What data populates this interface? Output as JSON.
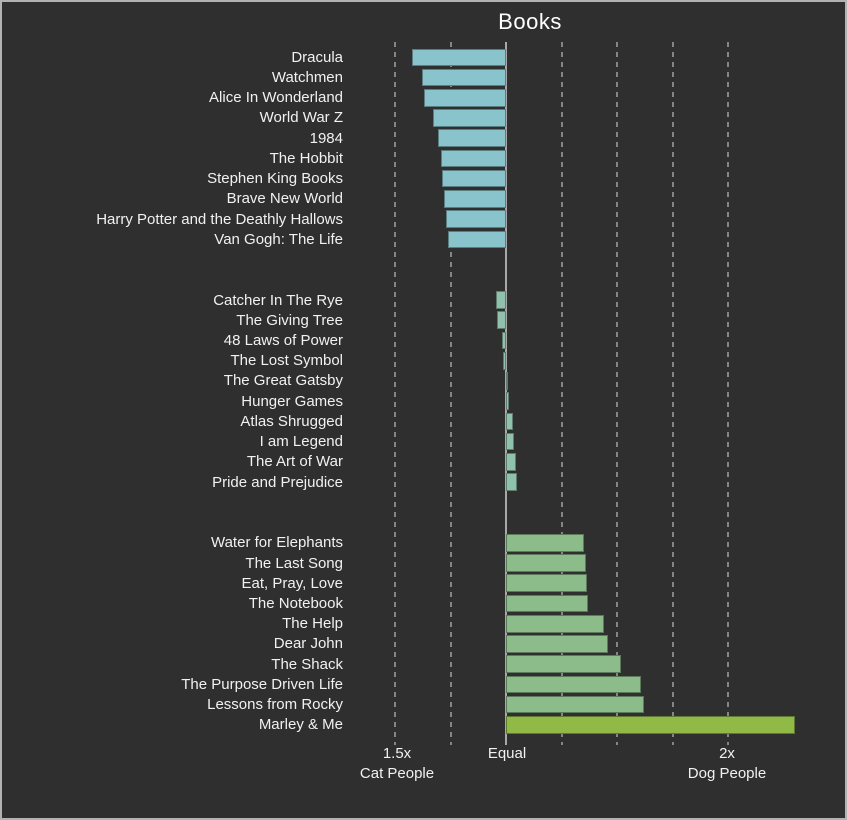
{
  "chart_data": {
    "type": "bar",
    "orientation": "horizontal_diverging",
    "title": "Books",
    "axis": {
      "left": {
        "line1": "1.5x",
        "line2": "Cat People"
      },
      "center": {
        "line1": "Equal"
      },
      "right": {
        "line1": "2x",
        "line2": "Dog People"
      }
    },
    "axis_note": "bar lengths are preference multiples; cat-side bars extend left of Equal, dog-side bars extend right",
    "gridline_units": [
      -0.5,
      -0.25,
      0.25,
      0.5,
      0.75,
      1.0
    ],
    "colors": {
      "background": "#2f2f2f",
      "frame_border": "#b2b2b2",
      "text": "#f1f1f1",
      "grid_dashed": "#858585",
      "grid_center": "#a8a8a8",
      "cat_bars": "#89c3cc",
      "neutral_bars": "#90c1ad",
      "dog_bars": "#8dbc8b",
      "highlight_bar": "#90ba45"
    },
    "groups": [
      {
        "name": "cat-favored",
        "color": "#89c3cc",
        "items": [
          {
            "label": "Dracula",
            "side": "cat",
            "value": 1.425
          },
          {
            "label": "Watchmen",
            "side": "cat",
            "value": 1.38
          },
          {
            "label": "Alice In Wonderland",
            "side": "cat",
            "value": 1.37
          },
          {
            "label": "World War Z",
            "side": "cat",
            "value": 1.33
          },
          {
            "label": "1984",
            "side": "cat",
            "value": 1.305
          },
          {
            "label": "The Hobbit",
            "side": "cat",
            "value": 1.295
          },
          {
            "label": "Stephen King Books",
            "side": "cat",
            "value": 1.29
          },
          {
            "label": "Brave New World",
            "side": "cat",
            "value": 1.28
          },
          {
            "label": "Harry Potter and the Deathly Hallows",
            "side": "cat",
            "value": 1.27
          },
          {
            "label": "Van Gogh: The Life",
            "side": "cat",
            "value": 1.26
          }
        ]
      },
      {
        "name": "near-equal",
        "color": "#90c1ad",
        "items": [
          {
            "label": "Catcher In The Rye",
            "side": "cat",
            "value": 1.046
          },
          {
            "label": "The Giving Tree",
            "side": "cat",
            "value": 1.04
          },
          {
            "label": "48 Laws of Power",
            "side": "cat",
            "value": 1.02
          },
          {
            "label": "The Lost Symbol",
            "side": "cat",
            "value": 1.012
          },
          {
            "label": "The Great Gatsby",
            "side": "dog",
            "value": 1.008
          },
          {
            "label": "Hunger Games",
            "side": "dog",
            "value": 1.015
          },
          {
            "label": "Atlas Shrugged",
            "side": "dog",
            "value": 1.03
          },
          {
            "label": "I am Legend",
            "side": "dog",
            "value": 1.034
          },
          {
            "label": "The Art of War",
            "side": "dog",
            "value": 1.045
          },
          {
            "label": "Pride and Prejudice",
            "side": "dog",
            "value": 1.05
          }
        ]
      },
      {
        "name": "dog-favored",
        "color": "#8dbc8b",
        "items": [
          {
            "label": "Water for Elephants",
            "side": "dog",
            "value": 1.35
          },
          {
            "label": "The Last Song",
            "side": "dog",
            "value": 1.36
          },
          {
            "label": "Eat, Pray, Love",
            "side": "dog",
            "value": 1.365
          },
          {
            "label": "The Notebook",
            "side": "dog",
            "value": 1.37
          },
          {
            "label": "The Help",
            "side": "dog",
            "value": 1.44
          },
          {
            "label": "Dear John",
            "side": "dog",
            "value": 1.46
          },
          {
            "label": "The Shack",
            "side": "dog",
            "value": 1.52
          },
          {
            "label": "The Purpose Driven Life",
            "side": "dog",
            "value": 1.61
          },
          {
            "label": "Lessons from Rocky",
            "side": "dog",
            "value": 1.62
          },
          {
            "label": "Marley & Me",
            "side": "dog",
            "value": 2.3,
            "color": "#90ba45",
            "highlight": true
          }
        ]
      }
    ]
  }
}
